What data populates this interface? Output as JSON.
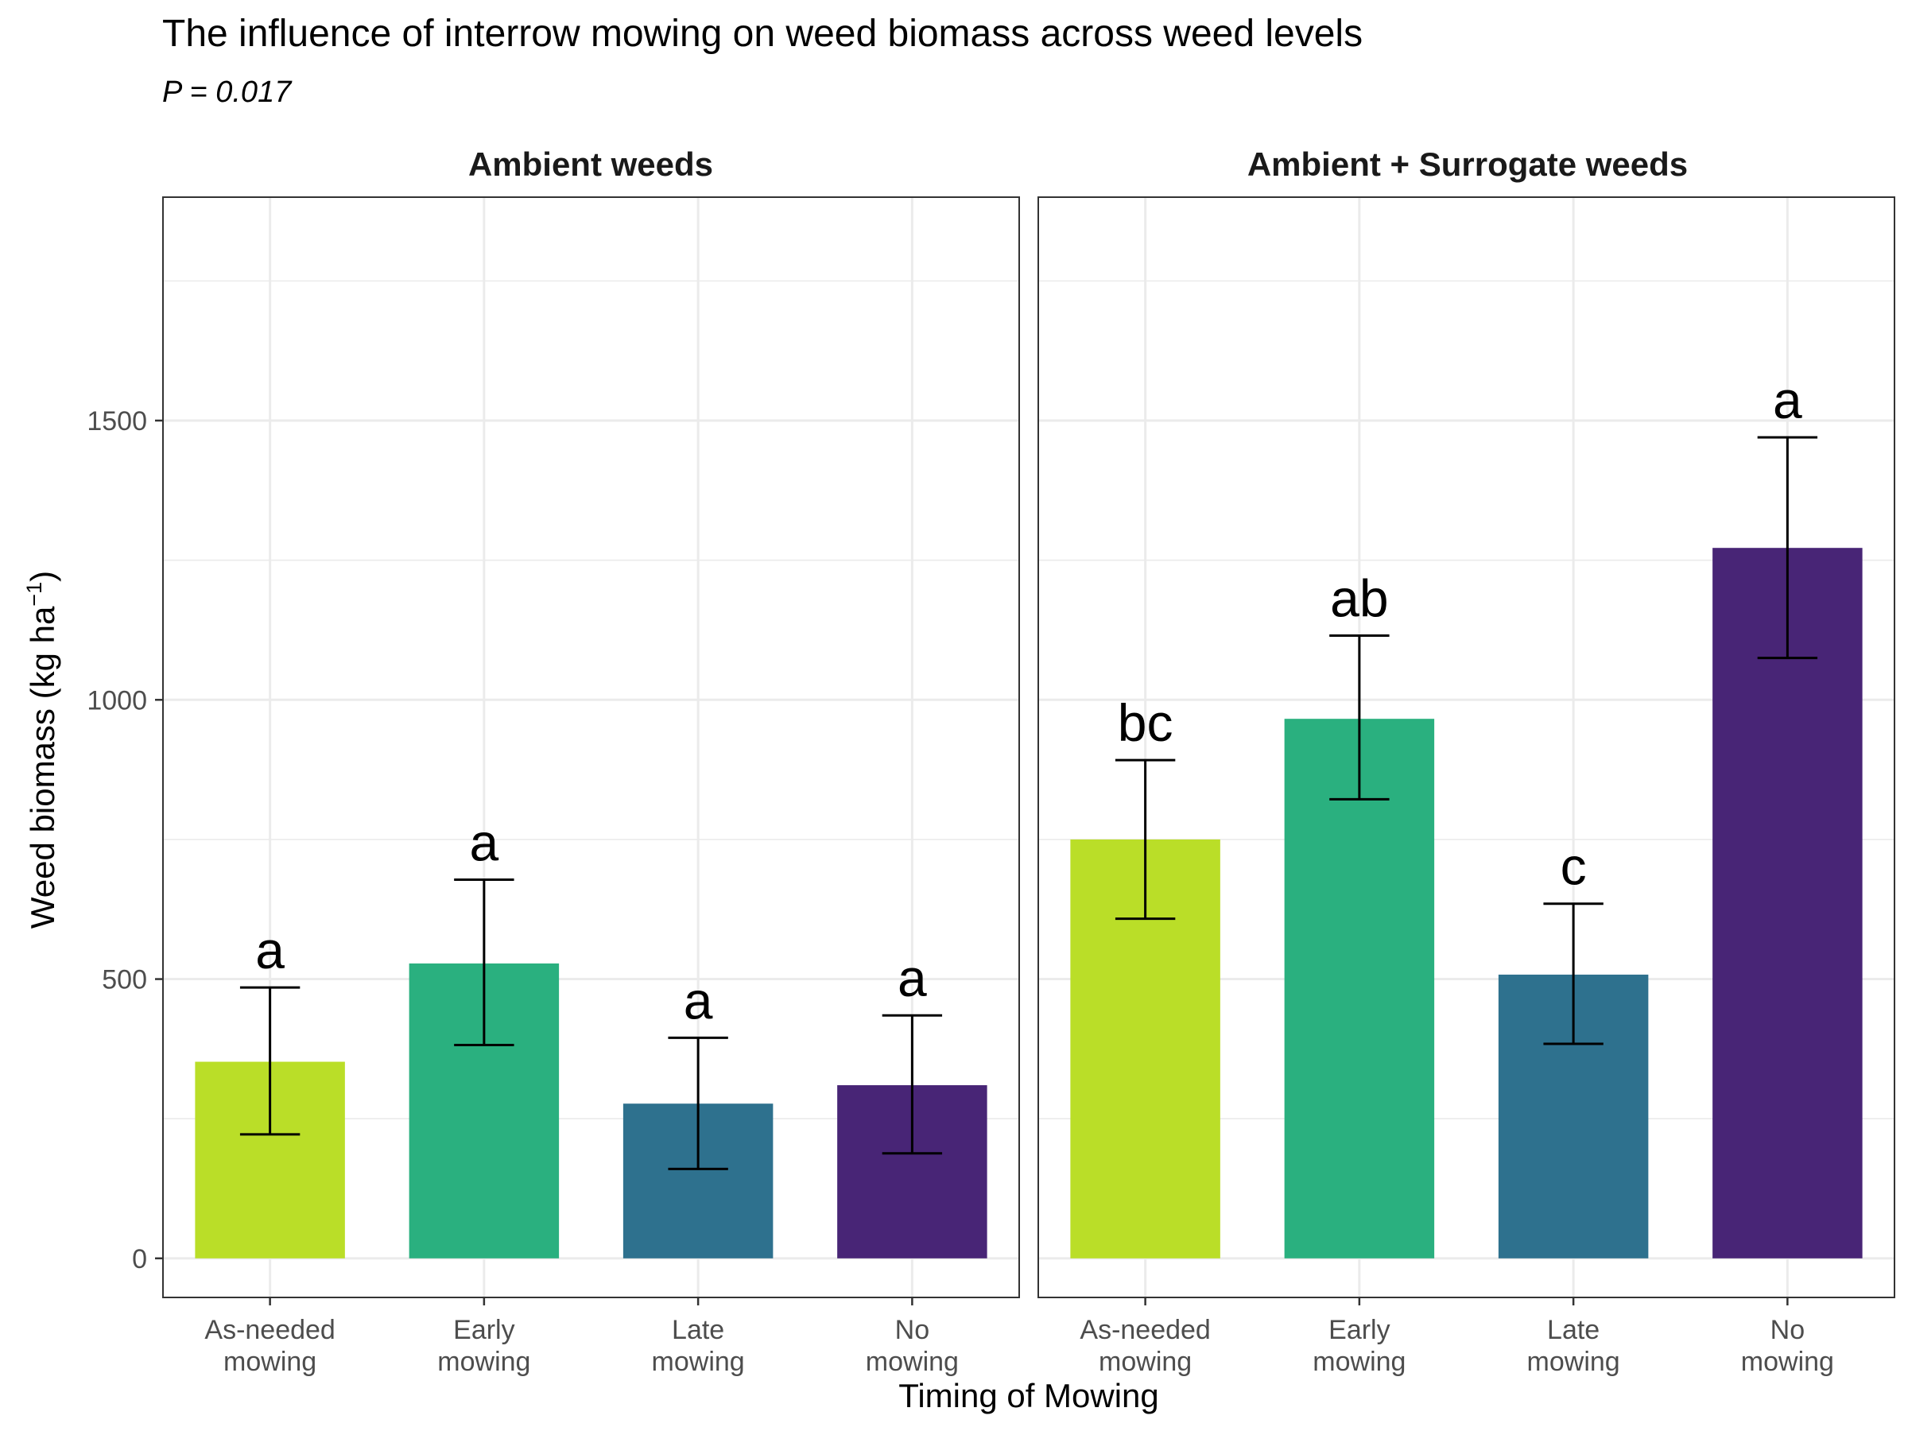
{
  "chart_data": {
    "type": "bar",
    "title": "The influence of interrow mowing on weed biomass across weed levels",
    "subtitle": "P = 0.017",
    "xlabel": "Timing of Mowing",
    "ylabel": {
      "main": "Weed biomass (kg ha",
      "sup": "−1",
      "close": ")"
    },
    "ylim": [
      -70,
      1900
    ],
    "yticks": [
      0,
      500,
      1000,
      1500
    ],
    "categories": [
      "As-needed mowing",
      "Early mowing",
      "Late mowing",
      "No mowing"
    ],
    "category_lines": [
      [
        "As-needed",
        "mowing"
      ],
      [
        "Early",
        "mowing"
      ],
      [
        "Late",
        "mowing"
      ],
      [
        "No",
        "mowing"
      ]
    ],
    "colors": [
      "#BADE28",
      "#2AB07F",
      "#2E718E",
      "#482576"
    ],
    "grid": true,
    "legend": "none",
    "panels": [
      {
        "name": "Ambient weeds",
        "values": [
          352,
          528,
          277,
          310
        ],
        "error_low": [
          222,
          382,
          160,
          188
        ],
        "error_high": [
          485,
          678,
          395,
          435
        ],
        "letters": [
          "a",
          "a",
          "a",
          "a"
        ]
      },
      {
        "name": "Ambient + Surrogate weeds",
        "values": [
          750,
          966,
          508,
          1272
        ],
        "error_low": [
          608,
          822,
          384,
          1075
        ],
        "error_high": [
          892,
          1115,
          635,
          1470
        ],
        "letters": [
          "bc",
          "ab",
          "c",
          "a"
        ]
      }
    ]
  }
}
